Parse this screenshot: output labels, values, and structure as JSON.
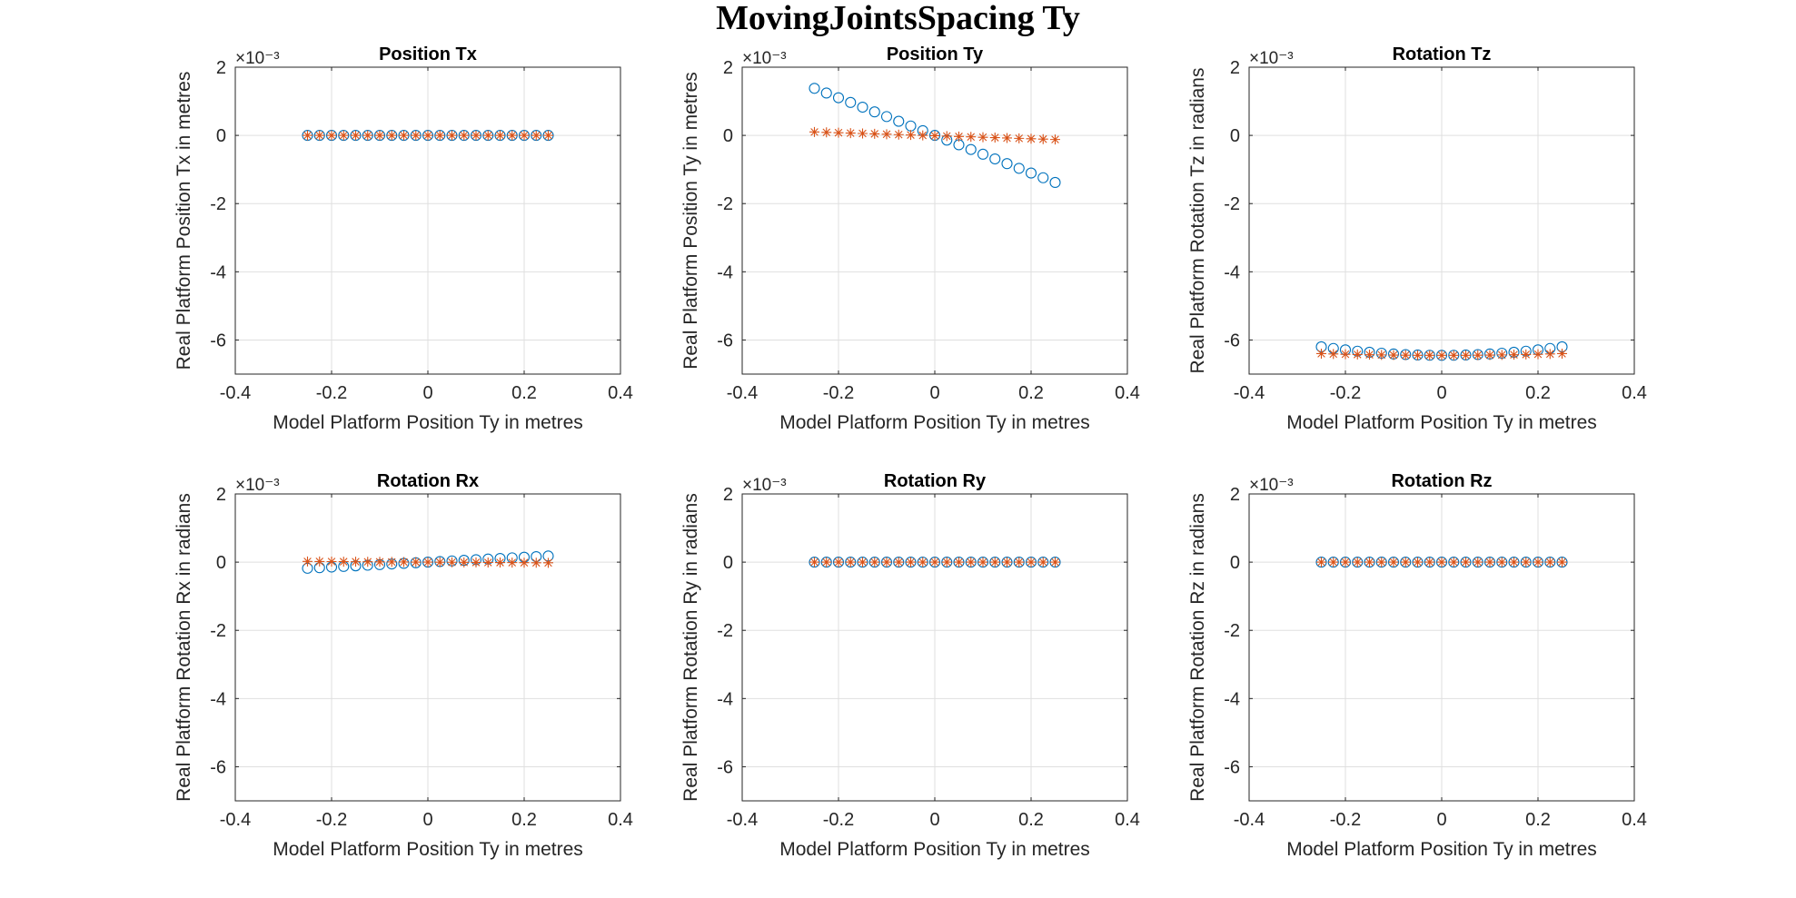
{
  "figure": {
    "title": "MovingJointsSpacing Ty"
  },
  "colors": {
    "series_circle": "#0072BD",
    "series_star": "#D95319",
    "grid": "#DFDFDF",
    "axis": "#262626"
  },
  "chart_data": [
    {
      "type": "scatter",
      "title": "Position Tx",
      "xlabel": "Model Platform Position Ty in metres",
      "ylabel": "Real Platform Position Tx in metres",
      "y_exponent": "×10⁻³",
      "xlim": [
        -0.4,
        0.4
      ],
      "ylim": [
        -0.007,
        0.002
      ],
      "xticks": [
        "-0.4",
        "-0.2",
        "0",
        "0.2",
        "0.4"
      ],
      "yticks": [
        "-6",
        "-4",
        "-2",
        "0",
        "2"
      ],
      "grid": true,
      "x": {
        "start": -0.25,
        "end": 0.25,
        "count": 21
      },
      "series": [
        {
          "marker": "circle",
          "color": "#0072BD",
          "y_start": 0.0,
          "y_end": 0.0,
          "curvature": 0.0
        },
        {
          "marker": "star",
          "color": "#D95319",
          "y_start": 0.0,
          "y_end": 0.0,
          "curvature": 0.0
        }
      ]
    },
    {
      "type": "scatter",
      "title": "Position Ty",
      "xlabel": "Model Platform Position Ty in metres",
      "ylabel": "Real Platform Position Ty in metres",
      "y_exponent": "×10⁻³",
      "xlim": [
        -0.4,
        0.4
      ],
      "ylim": [
        -0.007,
        0.002
      ],
      "xticks": [
        "-0.4",
        "-0.2",
        "0",
        "0.2",
        "0.4"
      ],
      "yticks": [
        "-6",
        "-4",
        "-2",
        "0",
        "2"
      ],
      "grid": true,
      "x": {
        "start": -0.25,
        "end": 0.25,
        "count": 21
      },
      "series": [
        {
          "marker": "circle",
          "color": "#0072BD",
          "y_start": 0.00138,
          "y_end": -0.00138,
          "curvature": 0.0
        },
        {
          "marker": "star",
          "color": "#D95319",
          "y_start": 0.0001,
          "y_end": -0.00012,
          "curvature": 0.0
        }
      ]
    },
    {
      "type": "scatter",
      "title": "Rotation Tz",
      "xlabel": "Model Platform Position Ty in metres",
      "ylabel": "Real Platform Rotation Tz in radians",
      "y_exponent": "×10⁻³",
      "xlim": [
        -0.4,
        0.4
      ],
      "ylim": [
        -0.007,
        0.002
      ],
      "xticks": [
        "-0.4",
        "-0.2",
        "0",
        "0.2",
        "0.4"
      ],
      "yticks": [
        "-6",
        "-4",
        "-2",
        "0",
        "2"
      ],
      "grid": true,
      "x": {
        "start": -0.25,
        "end": 0.25,
        "count": 21
      },
      "series": [
        {
          "marker": "circle",
          "color": "#0072BD",
          "y_start": -0.0062,
          "y_end": -0.0062,
          "curvature": -0.00025
        },
        {
          "marker": "star",
          "color": "#D95319",
          "y_start": -0.0064,
          "y_end": -0.0064,
          "curvature": -5e-05
        }
      ]
    },
    {
      "type": "scatter",
      "title": "Rotation Rx",
      "xlabel": "Model Platform Position Ty in metres",
      "ylabel": "Real Platform Rotation Rx in radians",
      "y_exponent": "×10⁻³",
      "xlim": [
        -0.4,
        0.4
      ],
      "ylim": [
        -0.007,
        0.002
      ],
      "xticks": [
        "-0.4",
        "-0.2",
        "0",
        "0.2",
        "0.4"
      ],
      "yticks": [
        "-6",
        "-4",
        "-2",
        "0",
        "2"
      ],
      "grid": true,
      "x": {
        "start": -0.25,
        "end": 0.25,
        "count": 21
      },
      "series": [
        {
          "marker": "circle",
          "color": "#0072BD",
          "y_start": -0.00018,
          "y_end": 0.00018,
          "curvature": 0.0
        },
        {
          "marker": "star",
          "color": "#D95319",
          "y_start": 2e-05,
          "y_end": -2e-05,
          "curvature": 0.0
        }
      ]
    },
    {
      "type": "scatter",
      "title": "Rotation Ry",
      "xlabel": "Model Platform Position Ty in metres",
      "ylabel": "Real Platform Rotation Ry in radians",
      "y_exponent": "×10⁻³",
      "xlim": [
        -0.4,
        0.4
      ],
      "ylim": [
        -0.007,
        0.002
      ],
      "xticks": [
        "-0.4",
        "-0.2",
        "0",
        "0.2",
        "0.4"
      ],
      "yticks": [
        "-6",
        "-4",
        "-2",
        "0",
        "2"
      ],
      "grid": true,
      "x": {
        "start": -0.25,
        "end": 0.25,
        "count": 21
      },
      "series": [
        {
          "marker": "circle",
          "color": "#0072BD",
          "y_start": 0.0,
          "y_end": 0.0,
          "curvature": 0.0
        },
        {
          "marker": "star",
          "color": "#D95319",
          "y_start": 0.0,
          "y_end": 0.0,
          "curvature": 0.0
        }
      ]
    },
    {
      "type": "scatter",
      "title": "Rotation Rz",
      "xlabel": "Model Platform Position Ty in metres",
      "ylabel": "Real Platform Rotation Rz in radians",
      "y_exponent": "×10⁻³",
      "xlim": [
        -0.4,
        0.4
      ],
      "ylim": [
        -0.007,
        0.002
      ],
      "xticks": [
        "-0.4",
        "-0.2",
        "0",
        "0.2",
        "0.4"
      ],
      "yticks": [
        "-6",
        "-4",
        "-2",
        "0",
        "2"
      ],
      "grid": true,
      "x": {
        "start": -0.25,
        "end": 0.25,
        "count": 21
      },
      "series": [
        {
          "marker": "circle",
          "color": "#0072BD",
          "y_start": 0.0,
          "y_end": 0.0,
          "curvature": 0.0
        },
        {
          "marker": "star",
          "color": "#D95319",
          "y_start": 0.0,
          "y_end": 0.0,
          "curvature": 0.0
        }
      ]
    }
  ]
}
